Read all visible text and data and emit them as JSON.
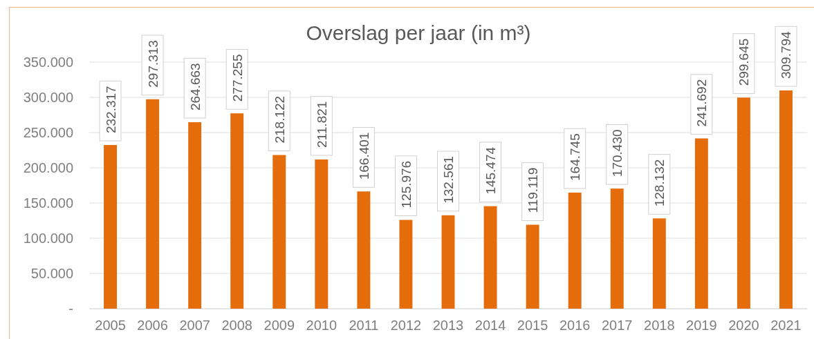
{
  "chart_data": {
    "type": "bar",
    "title": "Overslag per jaar (in m³)",
    "categories": [
      "2005",
      "2006",
      "2007",
      "2008",
      "2009",
      "2010",
      "2011",
      "2012",
      "2013",
      "2014",
      "2015",
      "2016",
      "2017",
      "2018",
      "2019",
      "2020",
      "2021"
    ],
    "values": [
      232317,
      297313,
      264663,
      277255,
      218122,
      211821,
      166401,
      125976,
      132561,
      145474,
      119119,
      164745,
      170430,
      128132,
      241692,
      299645,
      309794
    ],
    "value_labels": [
      "232.317",
      "297.313",
      "264.663",
      "277.255",
      "218.122",
      "211.821",
      "166.401",
      "125.976",
      "132.561",
      "145.474",
      "119.119",
      "164.745",
      "170.430",
      "128.132",
      "241.692",
      "299.645",
      "309.794"
    ],
    "color": "#e46c0a",
    "ylim": [
      0,
      350000
    ],
    "yticks": [
      {
        "value": 0,
        "label": "-"
      },
      {
        "value": 50000,
        "label": "50.000"
      },
      {
        "value": 100000,
        "label": "100.000"
      },
      {
        "value": 150000,
        "label": "150.000"
      },
      {
        "value": 200000,
        "label": "200.000"
      },
      {
        "value": 250000,
        "label": "250.000"
      },
      {
        "value": 300000,
        "label": "300.000"
      },
      {
        "value": 350000,
        "label": "350.000"
      }
    ],
    "grid": "y"
  }
}
